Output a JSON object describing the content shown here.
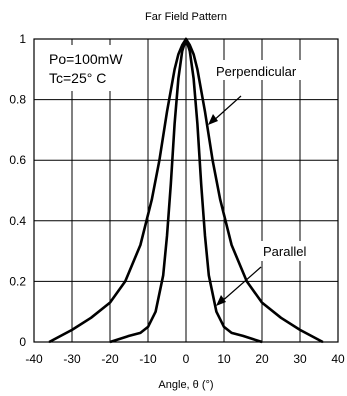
{
  "chart_data": {
    "type": "line",
    "title": "Far Field Pattern",
    "xlabel": "Angle, θ (°)",
    "ylabel": "",
    "xlim": [
      -40,
      40
    ],
    "ylim": [
      0,
      1
    ],
    "x_ticks": [
      "-40",
      "-30",
      "-20",
      "-10",
      "0",
      "10",
      "20",
      "30",
      "40"
    ],
    "y_ticks": [
      "0",
      "0.2",
      "0.4",
      "0.6",
      "0.8",
      "1"
    ],
    "grid": true,
    "conditions": [
      "Po=100mW",
      "Tc=25°  C"
    ],
    "series": [
      {
        "name": "Perpendicular",
        "x": [
          -36,
          -30,
          -25,
          -20,
          -16,
          -12,
          -9,
          -7,
          -5,
          -3,
          -2,
          -1,
          0,
          1,
          2,
          3,
          5,
          7,
          9,
          12,
          16,
          20,
          25,
          30,
          36
        ],
        "y": [
          0.0,
          0.04,
          0.08,
          0.13,
          0.2,
          0.32,
          0.47,
          0.6,
          0.76,
          0.9,
          0.95,
          0.98,
          1.0,
          0.98,
          0.95,
          0.9,
          0.76,
          0.6,
          0.47,
          0.32,
          0.2,
          0.13,
          0.08,
          0.04,
          0.0
        ]
      },
      {
        "name": "Parallel",
        "x": [
          -20,
          -15,
          -12,
          -10,
          -8,
          -6,
          -5,
          -4,
          -3,
          -2,
          -1,
          0,
          1,
          2,
          3,
          4,
          5,
          6,
          8,
          10,
          12,
          15,
          20
        ],
        "y": [
          0.0,
          0.02,
          0.03,
          0.05,
          0.1,
          0.22,
          0.35,
          0.52,
          0.72,
          0.87,
          0.96,
          1.0,
          0.96,
          0.87,
          0.72,
          0.52,
          0.35,
          0.22,
          0.1,
          0.05,
          0.03,
          0.02,
          0.0
        ]
      }
    ]
  }
}
